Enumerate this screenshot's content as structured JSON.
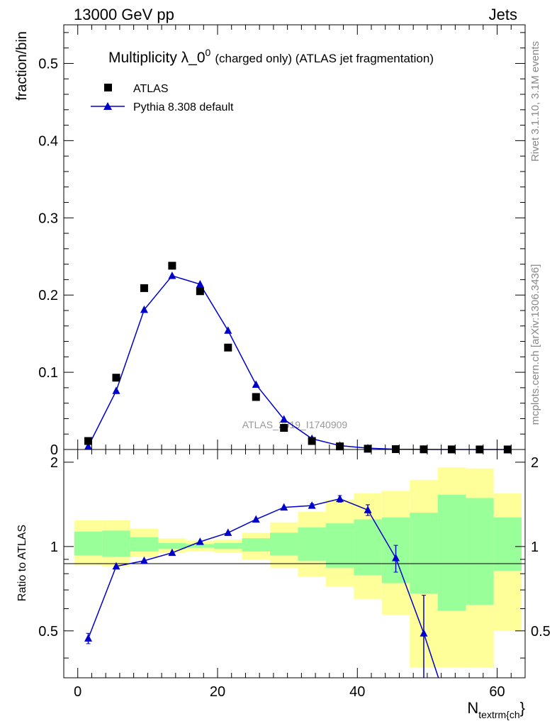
{
  "header": {
    "left": "13000 GeV pp",
    "right": "Jets"
  },
  "plot_title": {
    "main": "Multiplicity λ_0",
    "superscript": "0",
    "suffix": "(charged only) (ATLAS jet fragmentation)"
  },
  "watermark": "ATLAS_2019_I1740909",
  "side_text": {
    "top": "Rivet 3.1.10,  3.1M events",
    "bottom": "mcplots.cern.ch [arXiv:1306.3436]"
  },
  "legend": {
    "data_label": "ATLAS",
    "mc_label": "Pythia 8.308 default"
  },
  "colors": {
    "data": "#000000",
    "mc": "#0000cc",
    "band_outer": "#ffff99",
    "band_inner": "#99ff99"
  },
  "chart_data": [
    {
      "type": "scatter",
      "ylabel": "fraction/bin",
      "xlim": [
        -2,
        64
      ],
      "ylim": [
        0,
        0.55
      ],
      "yticks": [
        0,
        0.1,
        0.2,
        0.3,
        0.4,
        0.5
      ],
      "ytick_labels": [
        "0",
        "0.1",
        "0.2",
        "0.3",
        "0.4",
        "0.5"
      ],
      "series": [
        {
          "name": "ATLAS",
          "marker": "square",
          "x": [
            1.5,
            5.5,
            9.5,
            13.5,
            17.5,
            21.5,
            25.5,
            29.5,
            33.5,
            37.5,
            41.5,
            45.5,
            49.5,
            53.5,
            57.5,
            61.5
          ],
          "values": [
            0.011,
            0.093,
            0.209,
            0.238,
            0.205,
            0.132,
            0.068,
            0.028,
            0.011,
            0.004,
            0.001,
            0.0005,
            0.0002,
            0.0001,
            5e-05,
            3e-05
          ]
        },
        {
          "name": "Pythia 8.308 default",
          "marker": "triangle",
          "x": [
            1.5,
            5.5,
            9.5,
            13.5,
            17.5,
            21.5,
            25.5,
            29.5,
            33.5,
            37.5,
            41.5,
            45.5,
            49.5,
            53.5,
            57.5,
            61.5
          ],
          "values": [
            0.004,
            0.076,
            0.181,
            0.225,
            0.214,
            0.154,
            0.084,
            0.039,
            0.014,
            0.005,
            0.0017,
            0.0004,
            0.0001,
            2e-05,
            5e-06,
            1e-06
          ]
        }
      ]
    },
    {
      "type": "line",
      "ylabel": "Ratio to ATLAS",
      "xlabel": "N_textrm{ch}",
      "xlim": [
        -2,
        64
      ],
      "ylim": [
        0.34,
        2.22
      ],
      "yticks": [
        0.5,
        1,
        2
      ],
      "ytick_labels": [
        "0.5",
        "1",
        "2"
      ],
      "xticks": [
        0,
        20,
        40,
        60
      ],
      "xtick_labels": [
        "0",
        "20",
        "40",
        "60"
      ],
      "bands": {
        "edges": [
          -0.5,
          3.5,
          7.5,
          11.5,
          15.5,
          19.5,
          23.5,
          27.5,
          31.5,
          35.5,
          39.5,
          43.5,
          47.5,
          51.5,
          55.5,
          59.5,
          63.5
        ],
        "outer_low": [
          0.86,
          0.85,
          0.92,
          0.95,
          0.96,
          0.95,
          0.9,
          0.84,
          0.78,
          0.72,
          0.65,
          0.57,
          0.37,
          0.37,
          0.37,
          0.5
        ],
        "outer_high": [
          1.24,
          1.24,
          1.16,
          1.07,
          1.05,
          1.06,
          1.12,
          1.22,
          1.33,
          1.47,
          1.55,
          1.58,
          1.73,
          1.92,
          1.9,
          1.55
        ],
        "inner_low": [
          0.93,
          0.92,
          0.96,
          0.98,
          0.99,
          0.98,
          0.96,
          0.93,
          0.89,
          0.84,
          0.79,
          0.74,
          0.68,
          0.59,
          0.62,
          0.82
        ],
        "inner_high": [
          1.13,
          1.14,
          1.08,
          1.03,
          1.02,
          1.03,
          1.07,
          1.12,
          1.17,
          1.21,
          1.25,
          1.27,
          1.32,
          1.53,
          1.49,
          1.27
        ]
      },
      "series": [
        {
          "name": "Pythia 8.308 default",
          "x": [
            1.5,
            5.5,
            9.5,
            13.5,
            17.5,
            21.5,
            25.5,
            29.5,
            33.5,
            37.5,
            41.5,
            45.5,
            49.5,
            51.6
          ],
          "values": [
            0.47,
            0.85,
            0.89,
            0.95,
            1.04,
            1.12,
            1.25,
            1.38,
            1.4,
            1.48,
            1.35,
            0.91,
            0.49,
            0.34
          ],
          "err_low": [
            0.02,
            0.01,
            0.01,
            0.01,
            0.01,
            0.01,
            0.01,
            0.01,
            0.02,
            0.04,
            0.06,
            0.1,
            0.18,
            0
          ],
          "err_high": [
            0.02,
            0.01,
            0.01,
            0.01,
            0.01,
            0.01,
            0.01,
            0.01,
            0.02,
            0.04,
            0.06,
            0.1,
            0.18,
            0
          ]
        }
      ]
    }
  ]
}
